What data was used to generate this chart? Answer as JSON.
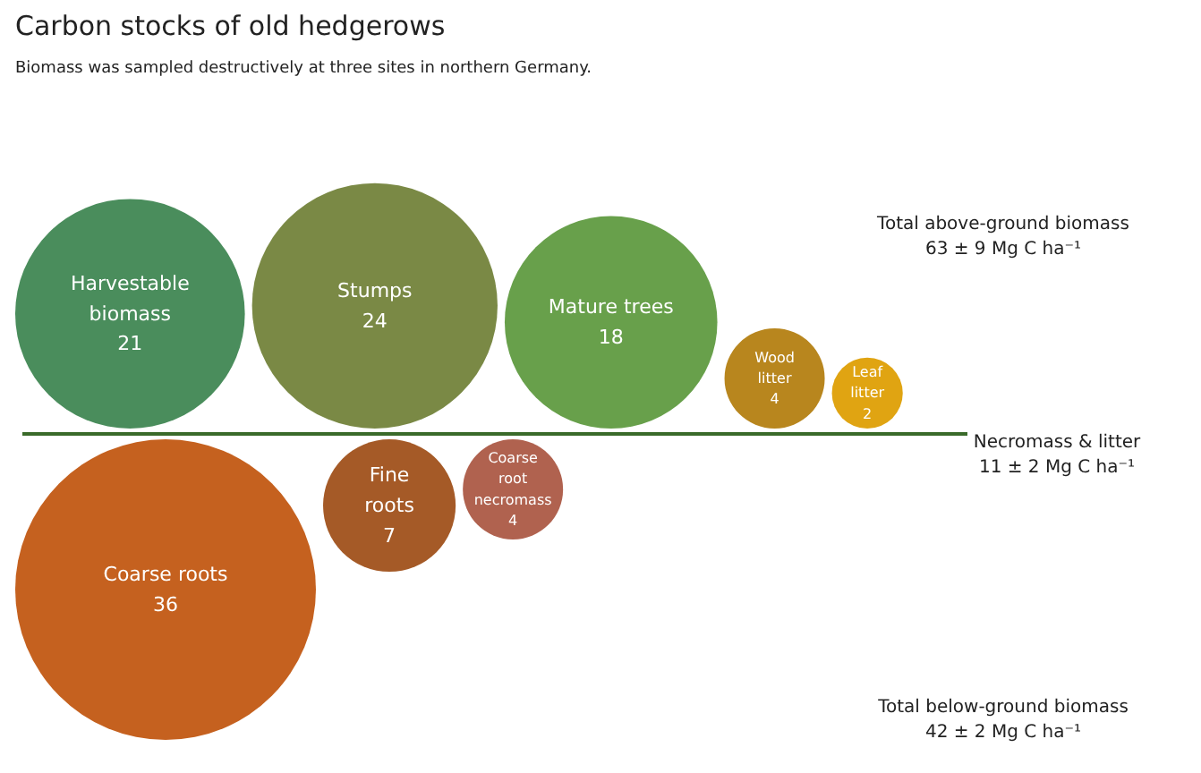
{
  "chart_data": {
    "type": "other",
    "title": "Carbon stocks of old hedgerows",
    "subtitle": "Biomass was sampled destructively at three sites in northern Germany.",
    "categories": [
      "Harvestable biomass",
      "Stumps",
      "Mature trees",
      "Wood litter",
      "Leaf litter",
      "Coarse roots",
      "Fine roots",
      "Coarse root necromass"
    ],
    "values": [
      21,
      24,
      18,
      4,
      2,
      36,
      7,
      4
    ],
    "colors": [
      "#4a8d5c",
      "#7a8945",
      "#68a04b",
      "#b8861e",
      "#e0a412",
      "#c5611f",
      "#a55a27",
      "#b0624f"
    ],
    "data_labels": true,
    "annotations": [
      "Total above-ground biomass\n63 ± 9 Mg C ha⁻¹",
      "Necromass & litter\n11 ± 2 Mg C ha⁻¹",
      "Total below-ground biomass\n42 ± 2 Mg C ha⁻¹"
    ]
  }
}
